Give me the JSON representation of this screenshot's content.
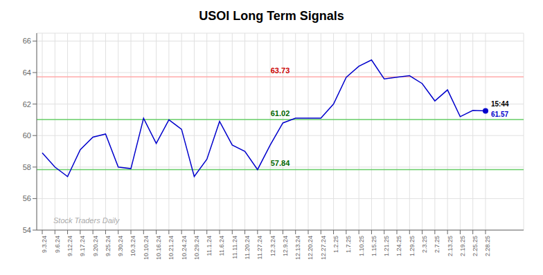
{
  "chart_data": {
    "type": "line",
    "title": "USOI Long Term Signals",
    "categories": [
      "9.3.24",
      "9.6.24",
      "9.12.24",
      "9.17.24",
      "9.20.24",
      "9.25.24",
      "9.30.24",
      "10.3.24",
      "10.10.24",
      "10.16.24",
      "10.21.24",
      "10.24.24",
      "10.29.24",
      "11.1.24",
      "11.6.24",
      "11.11.24",
      "11.20.24",
      "11.27.24",
      "12.3.24",
      "12.9.24",
      "12.13.24",
      "12.20.24",
      "12.27.24",
      "1.2.25",
      "1.7.25",
      "1.10.25",
      "1.15.25",
      "1.21.25",
      "1.24.25",
      "1.29.25",
      "2.3.25",
      "2.7.25",
      "2.13.25",
      "2.19.25",
      "2.25.25",
      "2.28.25"
    ],
    "values": [
      58.9,
      58.0,
      57.4,
      59.1,
      59.9,
      60.1,
      58.0,
      57.9,
      61.1,
      59.5,
      61.0,
      60.4,
      57.4,
      58.5,
      60.9,
      59.4,
      59.0,
      57.84,
      59.4,
      60.8,
      61.1,
      61.1,
      61.1,
      62.0,
      63.7,
      64.4,
      64.8,
      63.6,
      63.7,
      63.8,
      63.3,
      62.2,
      62.9,
      61.2,
      61.6,
      61.57
    ],
    "color": "#0000cc",
    "ylim": [
      54,
      66.5
    ],
    "yticks": [
      54,
      56,
      58,
      60,
      62,
      64,
      66
    ],
    "grid": true,
    "hlines": [
      {
        "value": 63.73,
        "label": "63.73",
        "color": "#ffaaaa",
        "label_color": "#cc0000"
      },
      {
        "value": 61.02,
        "label": "61.02",
        "color": "#66cc66",
        "label_color": "#006600"
      },
      {
        "value": 57.84,
        "label": "57.84",
        "color": "#66cc66",
        "label_color": "#006600"
      }
    ],
    "last_time": "15:44",
    "last_value": 61.57,
    "watermark": "Stock Traders Daily"
  }
}
